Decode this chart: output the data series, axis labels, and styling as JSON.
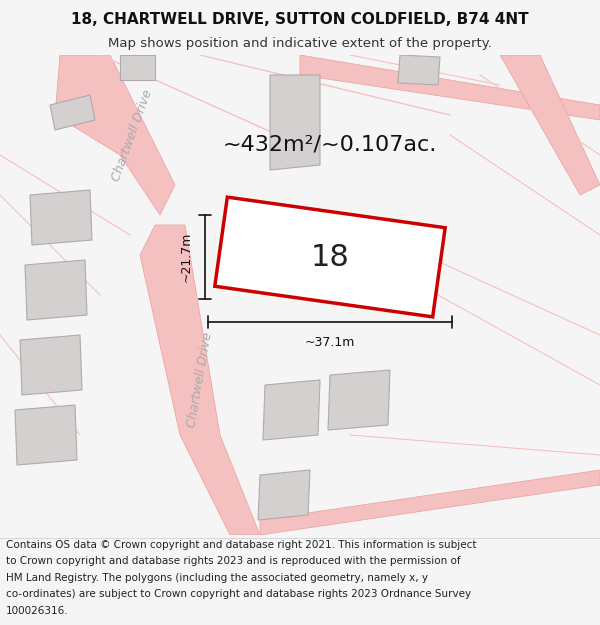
{
  "title_line1": "18, CHARTWELL DRIVE, SUTTON COLDFIELD, B74 4NT",
  "title_line2": "Map shows position and indicative extent of the property.",
  "area_text": "~432m²/~0.107ac.",
  "number_label": "18",
  "width_label": "~37.1m",
  "height_label": "~21.7m",
  "road_label": "Chartwell Drive",
  "road_label2": "Chartwell Drive",
  "bg_color": "#f5f5f5",
  "map_bg": "#f0eeee",
  "road_color": "#f5c0c0",
  "road_stroke": "#e8a0a0",
  "building_color": "#d4d0d0",
  "building_stroke": "#b0aaaa",
  "plot_color": "#ffffff",
  "plot_stroke": "#cc0000",
  "dim_color": "#111111",
  "text_color": "#333333",
  "road_text_color": "#aaaaaa",
  "footer_lines": [
    "Contains OS data © Crown copyright and database right 2021. This information is subject",
    "to Crown copyright and database rights 2023 and is reproduced with the permission of",
    "HM Land Registry. The polygons (including the associated geometry, namely x, y",
    "co-ordinates) are subject to Crown copyright and database rights 2023 Ordnance Survey",
    "100026316."
  ],
  "title_fontsize": 11,
  "subtitle_fontsize": 9.5,
  "area_fontsize": 16,
  "number_fontsize": 22,
  "dim_fontsize": 9,
  "road_fontsize": 9,
  "footer_fontsize": 7.5
}
